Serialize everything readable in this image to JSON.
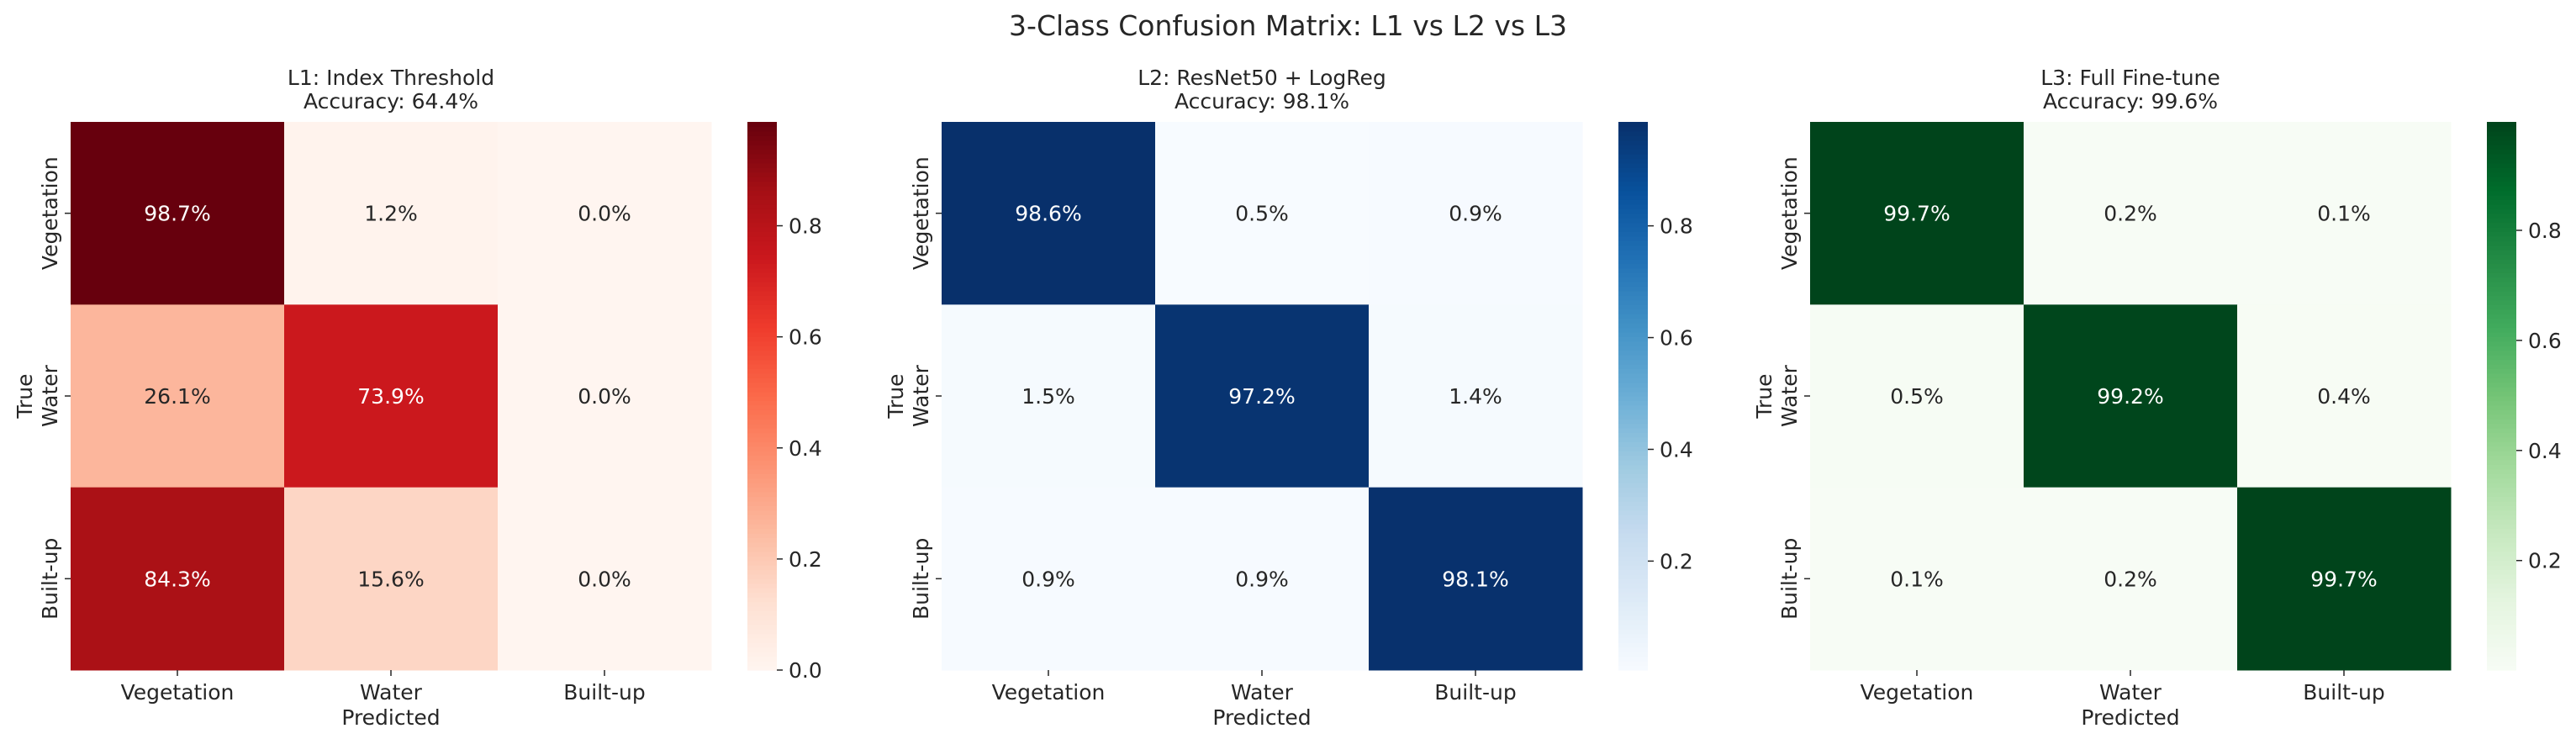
{
  "chart_data": {
    "title": "3-Class Confusion Matrix: L1 vs L2 vs L3",
    "panels": [
      {
        "type": "heatmap",
        "title": "L1: Index Threshold",
        "subtitle": "Accuracy: 64.4%",
        "colormap": "Reds",
        "xlabel": "Predicted",
        "ylabel": "True",
        "x_categories": [
          "Vegetation",
          "Water",
          "Built-up"
        ],
        "y_categories": [
          "Vegetation",
          "Water",
          "Built-up"
        ],
        "values": [
          [
            0.987,
            0.012,
            0.0
          ],
          [
            0.261,
            0.739,
            0.0
          ],
          [
            0.843,
            0.156,
            0.0
          ]
        ],
        "annotations": [
          [
            "98.7%",
            "1.2%",
            "0.0%"
          ],
          [
            "26.1%",
            "73.9%",
            "0.0%"
          ],
          [
            "84.3%",
            "15.6%",
            "0.0%"
          ]
        ],
        "colorbar": {
          "range": [
            0.0,
            0.987
          ],
          "ticks": [
            0.0,
            0.2,
            0.4,
            0.6,
            0.8
          ],
          "tick_labels": [
            "0.0",
            "0.2",
            "0.4",
            "0.6",
            "0.8"
          ]
        }
      },
      {
        "type": "heatmap",
        "title": "L2: ResNet50 + LogReg",
        "subtitle": "Accuracy: 98.1%",
        "colormap": "Blues",
        "xlabel": "Predicted",
        "ylabel": "True",
        "x_categories": [
          "Vegetation",
          "Water",
          "Built-up"
        ],
        "y_categories": [
          "Vegetation",
          "Water",
          "Built-up"
        ],
        "values": [
          [
            0.986,
            0.005,
            0.009
          ],
          [
            0.015,
            0.972,
            0.014
          ],
          [
            0.009,
            0.009,
            0.981
          ]
        ],
        "annotations": [
          [
            "98.6%",
            "0.5%",
            "0.9%"
          ],
          [
            "1.5%",
            "97.2%",
            "1.4%"
          ],
          [
            "0.9%",
            "0.9%",
            "98.1%"
          ]
        ],
        "colorbar": {
          "range": [
            0.005,
            0.986
          ],
          "ticks": [
            0.2,
            0.4,
            0.6,
            0.8
          ],
          "tick_labels": [
            "0.2",
            "0.4",
            "0.6",
            "0.8"
          ]
        }
      },
      {
        "type": "heatmap",
        "title": "L3: Full Fine-tune",
        "subtitle": "Accuracy: 99.6%",
        "colormap": "Greens",
        "xlabel": "Predicted",
        "ylabel": "True",
        "x_categories": [
          "Vegetation",
          "Water",
          "Built-up"
        ],
        "y_categories": [
          "Vegetation",
          "Water",
          "Built-up"
        ],
        "values": [
          [
            0.997,
            0.002,
            0.001
          ],
          [
            0.005,
            0.992,
            0.004
          ],
          [
            0.001,
            0.002,
            0.997
          ]
        ],
        "annotations": [
          [
            "99.7%",
            "0.2%",
            "0.1%"
          ],
          [
            "0.5%",
            "99.2%",
            "0.4%"
          ],
          [
            "0.1%",
            "0.2%",
            "99.7%"
          ]
        ],
        "colorbar": {
          "range": [
            0.001,
            0.997
          ],
          "ticks": [
            0.2,
            0.4,
            0.6,
            0.8
          ],
          "tick_labels": [
            "0.2",
            "0.4",
            "0.6",
            "0.8"
          ]
        }
      }
    ]
  }
}
